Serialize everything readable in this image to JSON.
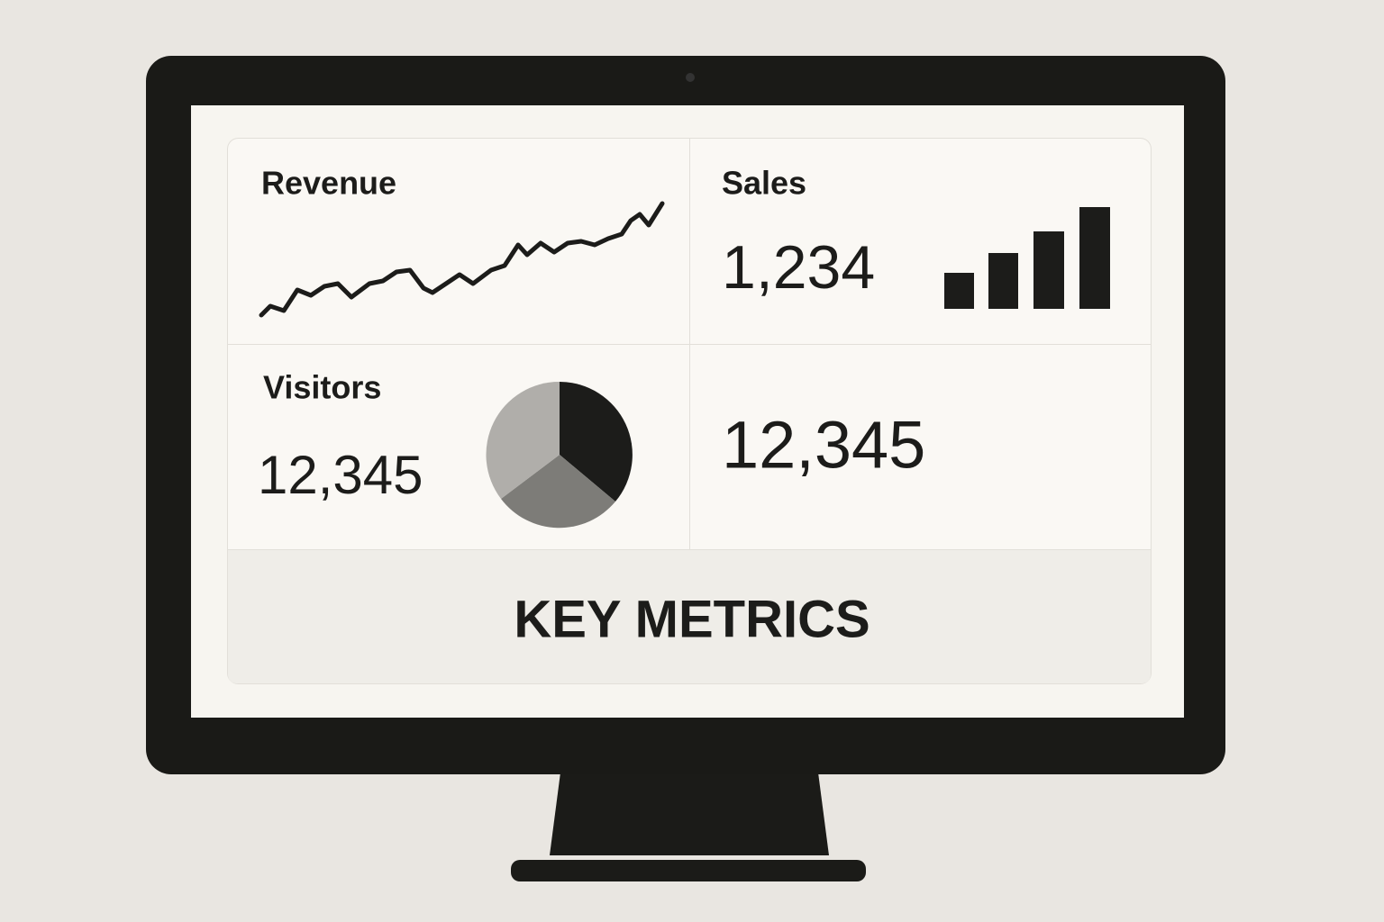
{
  "dashboard": {
    "widgets": [
      {
        "title": "Revenue"
      },
      {
        "title": "Sales",
        "value": "1,234"
      },
      {
        "title": "Visitors",
        "value": "12,345"
      },
      {
        "value": "12,345"
      }
    ],
    "footer": "KEY METRICS"
  }
}
